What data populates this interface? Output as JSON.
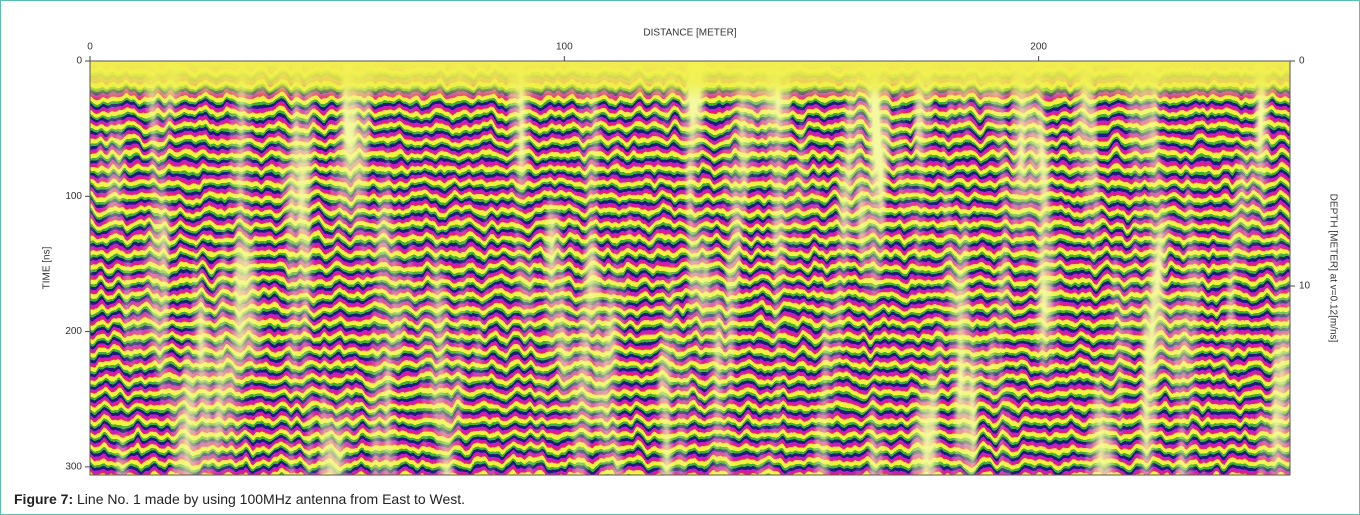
{
  "chart_data": {
    "type": "radargram",
    "xlabel": "DISTANCE [METER]",
    "ylabel": "TIME [ns]",
    "y2label": "DEPTH [METER] at v=0.12[m/ns]",
    "xlim": [
      0,
      253
    ],
    "xticks": [
      0,
      100,
      200
    ],
    "ylim": [
      0,
      306
    ],
    "yticks": [
      0,
      100,
      200,
      300
    ],
    "y2lim": [
      0,
      18.4
    ],
    "y2ticks": [
      0,
      10
    ]
  },
  "caption": {
    "label": "Figure 7:",
    "text": "Line No. 1 made by using 100MHz antenna from East to West."
  }
}
